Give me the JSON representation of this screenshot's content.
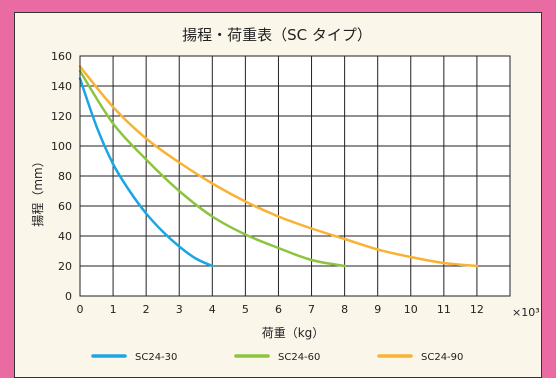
{
  "page": {
    "background_color": "#ea6ba2",
    "panel_color": "#fbf6ea"
  },
  "chart_data": {
    "type": "line",
    "title": "揚程・荷重表（SC タイプ）",
    "xlabel": "荷重（kg）",
    "ylabel": "揚程（mm）",
    "x_multiplier": "×10³",
    "xlim": [
      0,
      13
    ],
    "ylim": [
      0,
      160
    ],
    "xticks": [
      0,
      1,
      2,
      3,
      4,
      5,
      6,
      7,
      8,
      9,
      10,
      11,
      12
    ],
    "yticks": [
      0,
      20,
      40,
      60,
      80,
      100,
      120,
      140,
      160
    ],
    "grid": true,
    "legend_position": "bottom",
    "series": [
      {
        "name": "SC24-30",
        "color": "#1aa5e3",
        "points": [
          [
            0,
            145
          ],
          [
            0.5,
            113
          ],
          [
            1,
            88
          ],
          [
            1.5,
            70
          ],
          [
            2,
            55
          ],
          [
            2.5,
            43
          ],
          [
            3,
            33
          ],
          [
            3.5,
            25
          ],
          [
            4,
            20
          ]
        ]
      },
      {
        "name": "SC24-60",
        "color": "#8bc53f",
        "points": [
          [
            0,
            150
          ],
          [
            1,
            115
          ],
          [
            2,
            91
          ],
          [
            3,
            70
          ],
          [
            4,
            53
          ],
          [
            5,
            41
          ],
          [
            6,
            32
          ],
          [
            7,
            24
          ],
          [
            8,
            20
          ]
        ]
      },
      {
        "name": "SC24-90",
        "color": "#f9b234",
        "points": [
          [
            0,
            153
          ],
          [
            1,
            126
          ],
          [
            2,
            105
          ],
          [
            3,
            89
          ],
          [
            4,
            75
          ],
          [
            5,
            63
          ],
          [
            6,
            53
          ],
          [
            7,
            45
          ],
          [
            8,
            38
          ],
          [
            9,
            31
          ],
          [
            10,
            26
          ],
          [
            11,
            22
          ],
          [
            12,
            20
          ]
        ]
      }
    ]
  }
}
